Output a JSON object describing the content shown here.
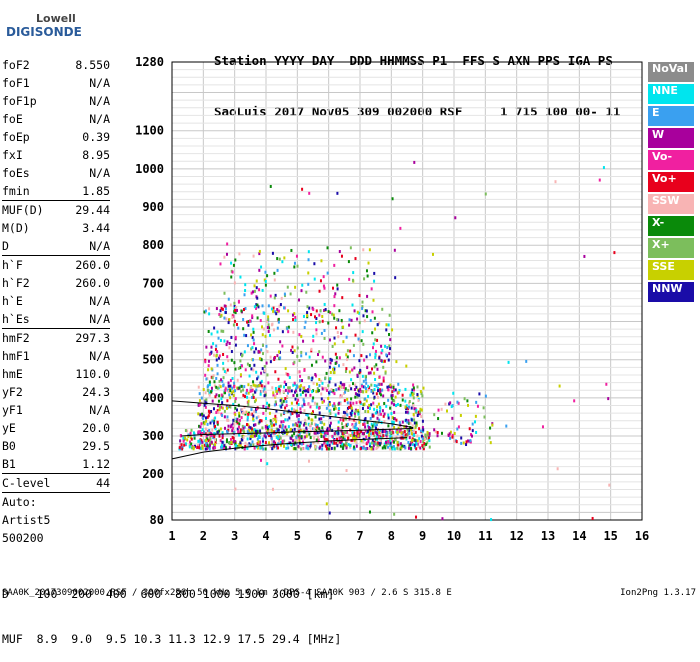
{
  "logo": {
    "line1": "Lowell",
    "line2": "DIGISONDE"
  },
  "header": {
    "line1": "Station YYYY DAY  DDD HHMMSS P1  FFS S AXN PPS IGA PS",
    "line2": "SaoLuis 2017 Nov05 309 002000 RSF     1 715 100 00- 11"
  },
  "params": [
    {
      "k": "foF2",
      "v": "8.550"
    },
    {
      "k": "foF1",
      "v": "N/A"
    },
    {
      "k": "foF1p",
      "v": "N/A"
    },
    {
      "k": "foE",
      "v": "N/A"
    },
    {
      "k": "foEp",
      "v": "0.39"
    },
    {
      "k": "fxI",
      "v": "8.95"
    },
    {
      "k": "foEs",
      "v": "N/A"
    },
    {
      "k": "fmin",
      "v": "1.85"
    },
    {
      "k": "MUF(D)",
      "v": "29.44"
    },
    {
      "k": "M(D)",
      "v": "3.44"
    },
    {
      "k": "D",
      "v": "N/A"
    },
    {
      "k": "h`F",
      "v": "260.0"
    },
    {
      "k": "h`F2",
      "v": "260.0"
    },
    {
      "k": "h`E",
      "v": "N/A"
    },
    {
      "k": "h`Es",
      "v": "N/A"
    },
    {
      "k": "hmF2",
      "v": "297.3"
    },
    {
      "k": "hmF1",
      "v": "N/A"
    },
    {
      "k": "hmE",
      "v": "110.0"
    },
    {
      "k": "yF2",
      "v": "24.3"
    },
    {
      "k": "yF1",
      "v": "N/A"
    },
    {
      "k": "yE",
      "v": "20.0"
    },
    {
      "k": "B0",
      "v": "29.5"
    },
    {
      "k": "B1",
      "v": "1.12"
    },
    {
      "k": "C-level",
      "v": "44"
    },
    {
      "k": "Auto:",
      "v": ""
    },
    {
      "k": "Artist5",
      "v": ""
    },
    {
      "k": "500200",
      "v": ""
    }
  ],
  "legend": [
    {
      "label": "NoVal",
      "bg": "#8c8c8c",
      "fg": "#ffffff"
    },
    {
      "label": "NNE",
      "bg": "#00e5ee",
      "fg": "#ffffff"
    },
    {
      "label": "E",
      "bg": "#3aa0f0",
      "fg": "#ffffff"
    },
    {
      "label": "W",
      "bg": "#a8009c",
      "fg": "#ffffff"
    },
    {
      "label": "Vo-",
      "bg": "#f020a0",
      "fg": "#ffffff"
    },
    {
      "label": "Vo+",
      "bg": "#e8001c",
      "fg": "#ffffff"
    },
    {
      "label": "SSW",
      "bg": "#f8b4b4",
      "fg": "#ffffff"
    },
    {
      "label": "X-",
      "bg": "#0a8a0a",
      "fg": "#ffffff"
    },
    {
      "label": "X+",
      "bg": "#7cbe5c",
      "fg": "#ffffff"
    },
    {
      "label": "SSE",
      "bg": "#c8d000",
      "fg": "#ffffff"
    },
    {
      "label": "NNW",
      "bg": "#1a0ca8",
      "fg": "#ffffff"
    }
  ],
  "muf_table": {
    "line1": "D    100  200  400  600  800 1000 1500 3000 [km]",
    "line2": "MUF  8.9  9.0  9.5 10.3 11.3 12.9 17.5 29.4 [MHz]"
  },
  "footer": {
    "left": "SAA0K_2017309002000.RSF / 300fx256h 50 kHz 5.0 km / DPS-4 SAA0K 903 / 2.6 S 315.8 E",
    "right": "Ion2Png 1.3.17"
  },
  "chart_data": {
    "type": "scatter",
    "xlim": [
      1,
      16
    ],
    "ylim": [
      80,
      1280
    ],
    "x_ticks": [
      1,
      2,
      3,
      4,
      5,
      6,
      7,
      8,
      9,
      10,
      11,
      12,
      13,
      14,
      15,
      16
    ],
    "y_ticks": [
      80,
      200,
      300,
      400,
      500,
      600,
      700,
      800,
      900,
      1000,
      1100,
      1280
    ],
    "grid": true,
    "traces": [
      {
        "name": "",
        "points": [
          [
            1.0,
            240
          ],
          [
            2,
            258
          ],
          [
            3,
            268
          ],
          [
            4,
            276
          ],
          [
            5,
            282
          ],
          [
            6,
            287
          ],
          [
            7,
            291
          ],
          [
            8,
            294
          ],
          [
            8.5,
            296
          ]
        ]
      },
      {
        "name": "",
        "points": [
          [
            1.3,
            300
          ],
          [
            2,
            304
          ],
          [
            3,
            306
          ],
          [
            4,
            308
          ],
          [
            5,
            311
          ],
          [
            6,
            313
          ],
          [
            7,
            315
          ],
          [
            8,
            318
          ],
          [
            8.7,
            320
          ]
        ]
      },
      {
        "name": "",
        "points": [
          [
            1.0,
            392
          ],
          [
            2,
            386
          ],
          [
            3,
            380
          ],
          [
            4,
            372
          ],
          [
            5,
            362
          ],
          [
            6,
            352
          ],
          [
            7,
            342
          ],
          [
            8,
            332
          ],
          [
            8.7,
            322
          ]
        ]
      }
    ],
    "echo_clusters": [
      {
        "x": [
          1.2,
          9.2
        ],
        "y": [
          270,
          320
        ],
        "n": 700
      },
      {
        "x": [
          1.8,
          9.0
        ],
        "y": [
          310,
          440
        ],
        "n": 900
      },
      {
        "x": [
          2.0,
          8.0
        ],
        "y": [
          420,
          650
        ],
        "n": 500
      },
      {
        "x": [
          2.5,
          7.5
        ],
        "y": [
          600,
          800
        ],
        "n": 160
      },
      {
        "x": [
          9.0,
          11.2
        ],
        "y": [
          280,
          420
        ],
        "n": 70
      },
      {
        "x": [
          2.5,
          15.2
        ],
        "y": [
          80,
          1050
        ],
        "n": 60
      }
    ]
  }
}
